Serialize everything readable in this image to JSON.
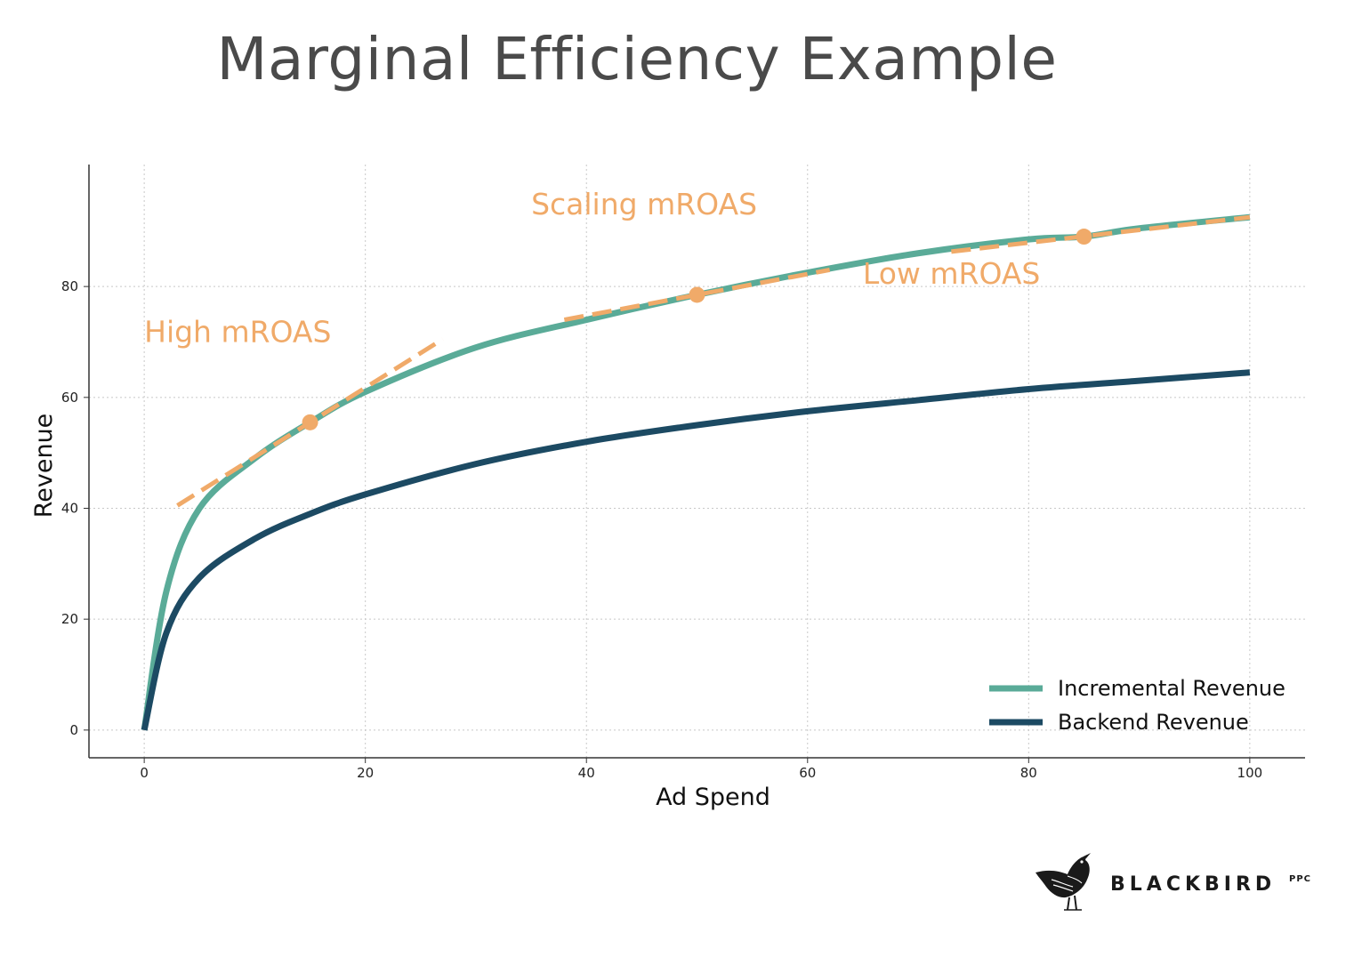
{
  "page": {
    "title": "Marginal Efficiency Example",
    "brand": {
      "name": "BLACKBIRD",
      "suffix": "PPC"
    }
  },
  "chart_data": {
    "type": "line",
    "xlabel": "Ad Spend",
    "ylabel": "Revenue",
    "xlim": [
      -5,
      105
    ],
    "ylim": [
      -5,
      102
    ],
    "xticks": [
      0,
      20,
      40,
      60,
      80,
      100
    ],
    "yticks": [
      0,
      20,
      40,
      60,
      80
    ],
    "grid": true,
    "legend_position": "bottom-right",
    "series": [
      {
        "name": "Incremental Revenue",
        "color": "#5aab98",
        "x": [
          0,
          2,
          5,
          10,
          15,
          20,
          30,
          40,
          50,
          60,
          70,
          80,
          85,
          90,
          100
        ],
        "y": [
          0,
          25,
          40,
          49,
          55.5,
          61,
          69,
          74,
          78.5,
          82.5,
          86,
          88.5,
          89,
          90.5,
          92.5
        ]
      },
      {
        "name": "Backend Revenue",
        "color": "#1c4a63",
        "x": [
          0,
          2,
          5,
          10,
          15,
          20,
          30,
          40,
          50,
          60,
          70,
          80,
          90,
          100
        ],
        "y": [
          0,
          17.5,
          27.5,
          34.5,
          39,
          42.5,
          48,
          52,
          55,
          57.5,
          59.5,
          61.5,
          63,
          64.5
        ]
      }
    ],
    "tangents": [
      {
        "x": [
          3,
          27
        ],
        "y": [
          40.5,
          70.5
        ],
        "color": "#f0aa69"
      },
      {
        "x": [
          38,
          62
        ],
        "y": [
          74,
          83
        ],
        "color": "#f0aa69"
      },
      {
        "x": [
          73,
          100
        ],
        "y": [
          86.3,
          92.5
        ],
        "color": "#f0aa69"
      }
    ],
    "points": [
      {
        "x": 15,
        "y": 55.5
      },
      {
        "x": 50,
        "y": 78.5
      },
      {
        "x": 85,
        "y": 89
      }
    ],
    "annotations": [
      {
        "text": "High mROAS",
        "x": 0,
        "y": 70
      },
      {
        "text": "Scaling mROAS",
        "x": 35,
        "y": 93
      },
      {
        "text": "Low mROAS",
        "x": 65,
        "y": 80.5
      }
    ]
  }
}
